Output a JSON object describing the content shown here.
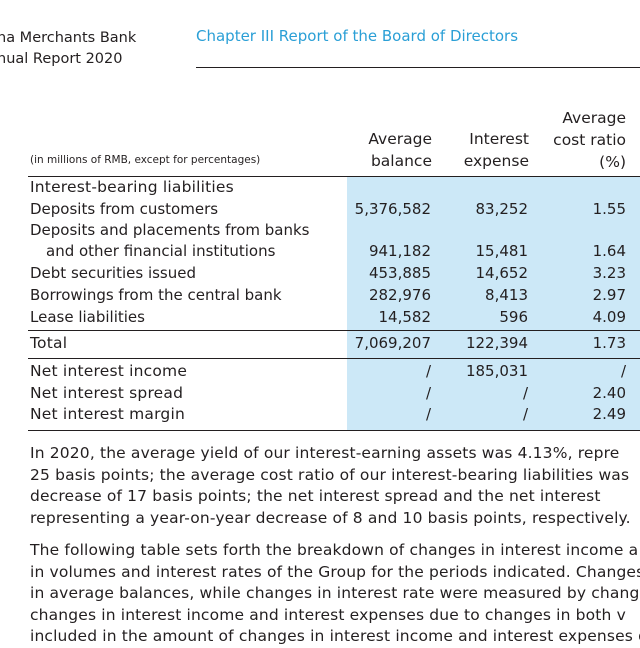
{
  "header": {
    "bank_name": "na Merchants Bank",
    "report_name": "nual Report 2020",
    "chapter": "Chapter III Report of the Board of Directors"
  },
  "table": {
    "unit_note": "(in millions of RMB, except for percentages)",
    "columns": {
      "avg_balance": [
        "Average",
        "balance"
      ],
      "interest_expense": [
        "Interest",
        "expense"
      ],
      "avg_cost_ratio": [
        "Average",
        "cost ratio",
        "(%)"
      ]
    },
    "section_title": "Interest-bearing liabilities",
    "rows": [
      {
        "label": "Deposits from customers",
        "balance": "5,376,582",
        "expense": "83,252",
        "ratio": "1.55"
      },
      {
        "label": "Deposits and placements from banks",
        "balance": "",
        "expense": "",
        "ratio": ""
      },
      {
        "label": "and other financial institutions",
        "balance": "941,182",
        "expense": "15,481",
        "ratio": "1.64"
      },
      {
        "label": "Debt securities issued",
        "balance": "453,885",
        "expense": "14,652",
        "ratio": "3.23"
      },
      {
        "label": "Borrowings from the central bank",
        "balance": "282,976",
        "expense": "8,413",
        "ratio": "2.97"
      },
      {
        "label": "Lease liabilities",
        "balance": "14,582",
        "expense": "596",
        "ratio": "4.09"
      }
    ],
    "total": {
      "label": "Total",
      "balance": "7,069,207",
      "expense": "122,394",
      "ratio": "1.73"
    },
    "summary": [
      {
        "label": "Net interest income",
        "balance": "/",
        "expense": "185,031",
        "ratio": "/"
      },
      {
        "label": "Net interest spread",
        "balance": "/",
        "expense": "/",
        "ratio": "2.40"
      },
      {
        "label": "Net interest margin",
        "balance": "/",
        "expense": "/",
        "ratio": "2.49"
      }
    ]
  },
  "paragraphs": {
    "p1": [
      "In 2020, the average yield of our interest-earning assets was 4.13%, repre",
      "25 basis points; the average cost ratio of our interest-bearing liabilities was",
      "decrease of 17 basis points; the net interest spread and the net interest",
      "representing a year-on-year decrease of 8 and 10 basis points, respectively."
    ],
    "p2": [
      "The following table sets forth the breakdown of changes in interest income a",
      "in volumes and interest rates of the Group for the periods indicated. Changes i",
      "in average balances, while changes in interest rate were measured by chang",
      "changes in interest income and interest expenses due to changes in both v",
      "included in the amount of changes in interest income and interest expenses due"
    ]
  }
}
